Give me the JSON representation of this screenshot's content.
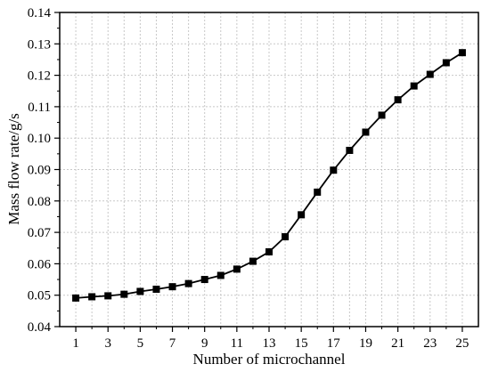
{
  "chart_data": {
    "type": "line",
    "xlabel": "Number of microchannel",
    "ylabel": "Mass flow rate/g/s",
    "xlim": [
      0,
      26
    ],
    "ylim": [
      0.04,
      0.14
    ],
    "xticks": [
      1,
      3,
      5,
      7,
      9,
      11,
      13,
      15,
      17,
      19,
      21,
      23,
      25
    ],
    "yticks": [
      "0.04",
      "0.05",
      "0.06",
      "0.07",
      "0.08",
      "0.09",
      "0.10",
      "0.11",
      "0.12",
      "0.13",
      "0.14"
    ],
    "grid": true,
    "marker": "square",
    "color": "#000000",
    "x": [
      1,
      2,
      3,
      4,
      5,
      6,
      7,
      8,
      9,
      10,
      11,
      12,
      13,
      14,
      15,
      16,
      17,
      18,
      19,
      20,
      21,
      22,
      23,
      24,
      25
    ],
    "values": [
      0.0491,
      0.0495,
      0.0498,
      0.0503,
      0.0512,
      0.0519,
      0.0527,
      0.0537,
      0.055,
      0.0563,
      0.0583,
      0.0608,
      0.0638,
      0.0686,
      0.0756,
      0.0828,
      0.0898,
      0.0961,
      0.1019,
      0.1073,
      0.1122,
      0.1166,
      0.1203,
      0.124,
      0.1272
    ]
  }
}
